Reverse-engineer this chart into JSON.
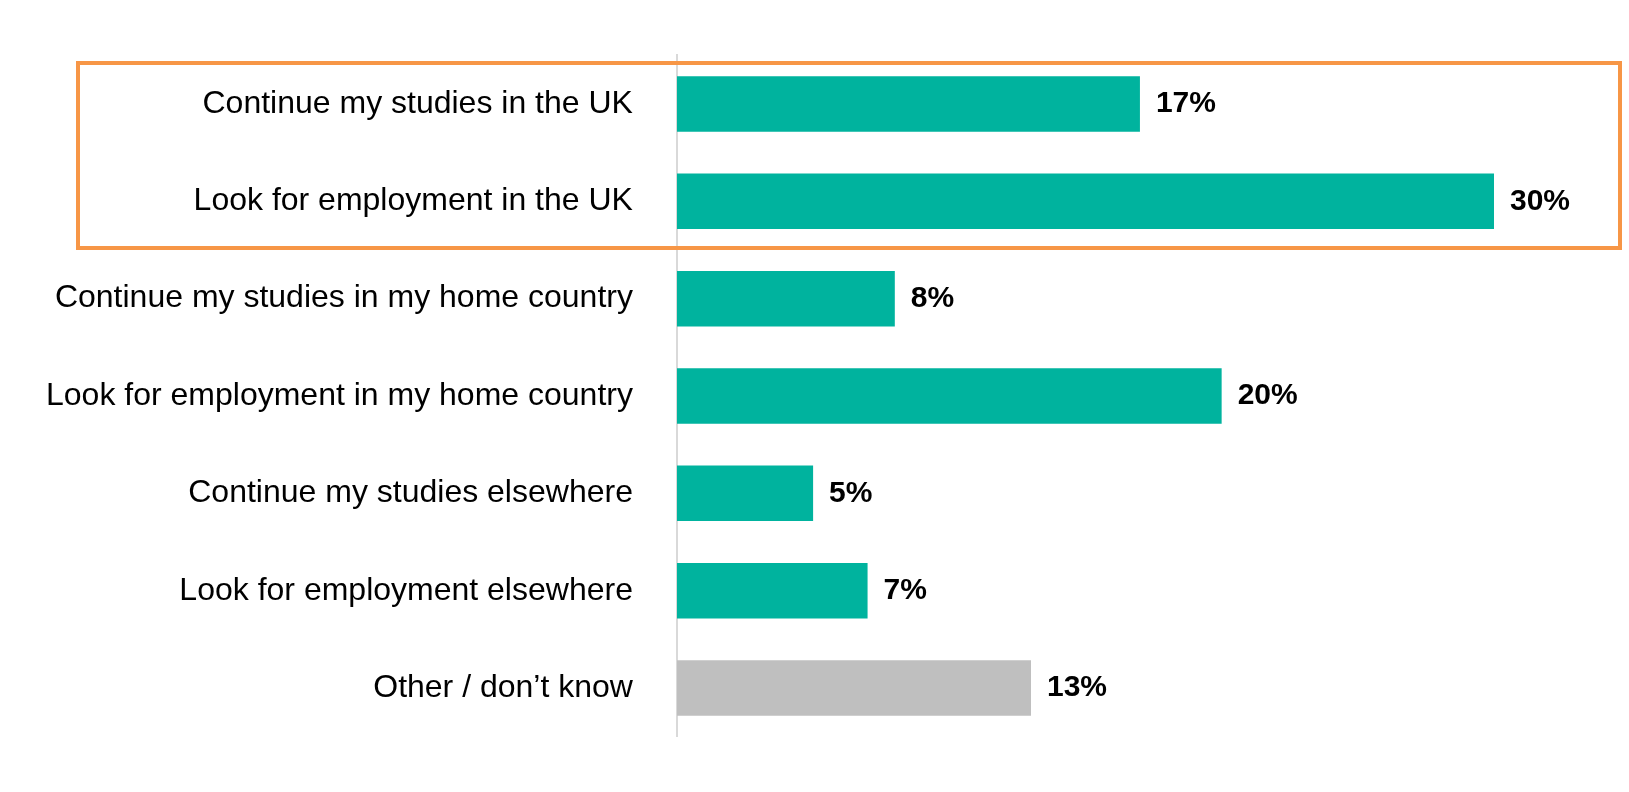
{
  "chart_data": {
    "type": "bar",
    "orientation": "horizontal",
    "categories": [
      "Continue my studies in the UK",
      "Look for employment in the UK",
      "Continue my studies in my home country",
      "Look for employment in my home country",
      "Continue my studies elsewhere",
      "Look for employment elsewhere",
      "Other / don’t know"
    ],
    "values": [
      17,
      30,
      8,
      20,
      5,
      7,
      13
    ],
    "colors": [
      "#00b39e",
      "#00b39e",
      "#00b39e",
      "#00b39e",
      "#00b39e",
      "#00b39e",
      "#bfbfbf"
    ],
    "value_labels": [
      "17%",
      "30%",
      "8%",
      "20%",
      "5%",
      "7%",
      "13%"
    ],
    "grid": false,
    "legend": false
  }
}
